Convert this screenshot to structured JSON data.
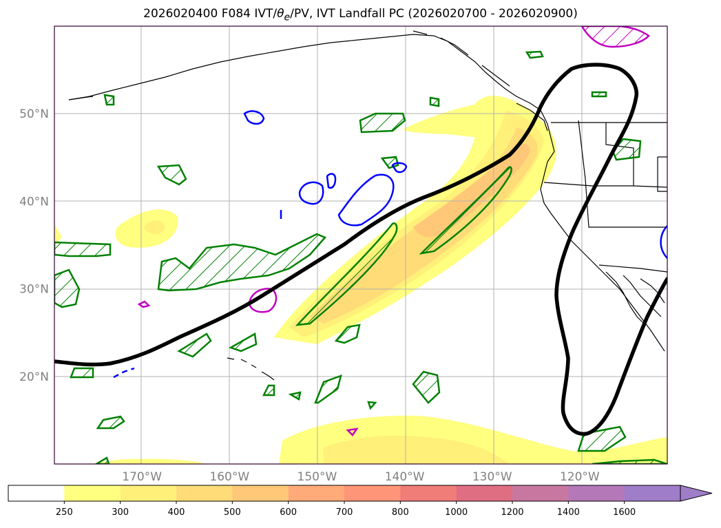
{
  "title": "2026020400 F084 IVT/θe/PV, IVT Landfall PC (2026020700 - 2026020900)",
  "title_parts": {
    "prefix": "2026020400 F084 IVT/",
    "theta": "θ",
    "sub": "e",
    "suffix": "/PV, IVT Landfall PC (2026020700 - 2026020900)"
  },
  "map": {
    "lon_range": [
      -180,
      -110
    ],
    "lat_range": [
      10,
      60
    ],
    "lat_ticks": [
      {
        "value": 20,
        "label": "20°N"
      },
      {
        "value": 30,
        "label": "30°N"
      },
      {
        "value": 40,
        "label": "40°N"
      },
      {
        "value": 50,
        "label": "50°N"
      }
    ],
    "lon_ticks": [
      {
        "value": -170,
        "label": "170°W"
      },
      {
        "value": -160,
        "label": "160°W"
      },
      {
        "value": -150,
        "label": "150°W"
      },
      {
        "value": -140,
        "label": "140°W"
      },
      {
        "value": -130,
        "label": "130°W"
      },
      {
        "value": -120,
        "label": "120°W"
      }
    ],
    "grid": true
  },
  "colorbar": {
    "ticks": [
      "250",
      "300",
      "400",
      "500",
      "600",
      "700",
      "800",
      "1000",
      "1200",
      "1400",
      "1600"
    ],
    "colors": [
      "#ffffff",
      "#ffff80",
      "#fff07a",
      "#ffdc78",
      "#ffc878",
      "#ffaa78",
      "#ff9578",
      "#f07d78",
      "#e06e82",
      "#c878a0",
      "#b478b9",
      "#a07dc8"
    ],
    "extend": "max"
  },
  "colors": {
    "landfall_pc": "#000000",
    "theta_e_contour": "#008000",
    "pv_contour": "#0000ff",
    "ivt_high_contour": "#c000c0",
    "grid": "#b0b0b0",
    "frame": "#330033"
  }
}
